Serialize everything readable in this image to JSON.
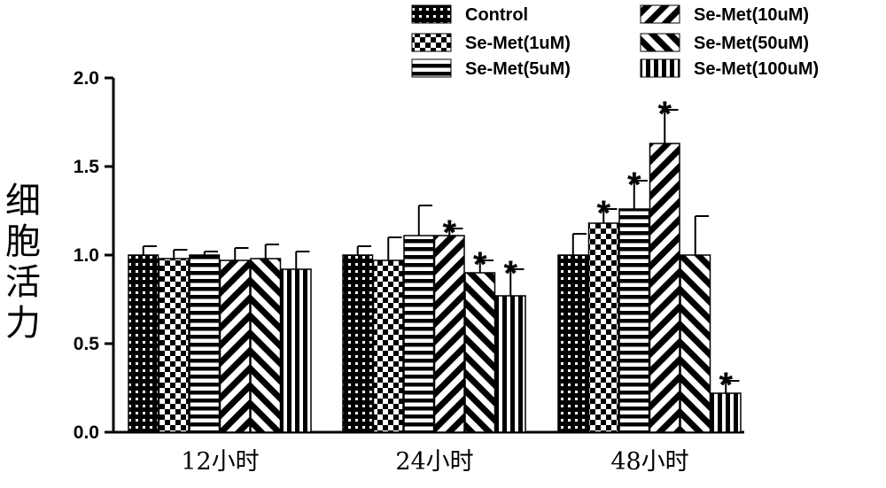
{
  "chart_data": {
    "type": "bar",
    "title": "",
    "xlabel": "",
    "ylabel": "细胞活力",
    "ylim": [
      0,
      2.0
    ],
    "yticks": [
      "0.0",
      "0.5",
      "1.0",
      "1.5",
      "2.0"
    ],
    "categories": [
      "12小时",
      "24小时",
      "48小时"
    ],
    "legend_position": "top-right",
    "significance_marker": "*",
    "series": [
      {
        "name": "Control",
        "pattern": "dots",
        "values": [
          1.0,
          1.0,
          1.0
        ],
        "errors": [
          0.05,
          0.05,
          0.12
        ],
        "significant": [
          false,
          false,
          false
        ]
      },
      {
        "name": "Se-Met(1uM)",
        "pattern": "checker",
        "values": [
          0.98,
          0.97,
          1.18
        ],
        "errors": [
          0.05,
          0.13,
          0.08
        ],
        "significant": [
          false,
          false,
          true
        ]
      },
      {
        "name": "Se-Met(5uM)",
        "pattern": "horizontal",
        "values": [
          1.0,
          1.11,
          1.26
        ],
        "errors": [
          0.02,
          0.17,
          0.16
        ],
        "significant": [
          false,
          false,
          true
        ]
      },
      {
        "name": "Se-Met(10uM)",
        "pattern": "diag-down",
        "values": [
          0.97,
          1.11,
          1.63
        ],
        "errors": [
          0.07,
          0.04,
          0.19
        ],
        "significant": [
          false,
          true,
          true
        ]
      },
      {
        "name": "Se-Met(50uM)",
        "pattern": "diag-up",
        "values": [
          0.98,
          0.9,
          1.0
        ],
        "errors": [
          0.08,
          0.07,
          0.22
        ],
        "significant": [
          false,
          true,
          false
        ]
      },
      {
        "name": "Se-Met(100uM)",
        "pattern": "vertical",
        "values": [
          0.92,
          0.77,
          0.22
        ],
        "errors": [
          0.1,
          0.15,
          0.07
        ],
        "significant": [
          false,
          true,
          true
        ]
      }
    ]
  }
}
